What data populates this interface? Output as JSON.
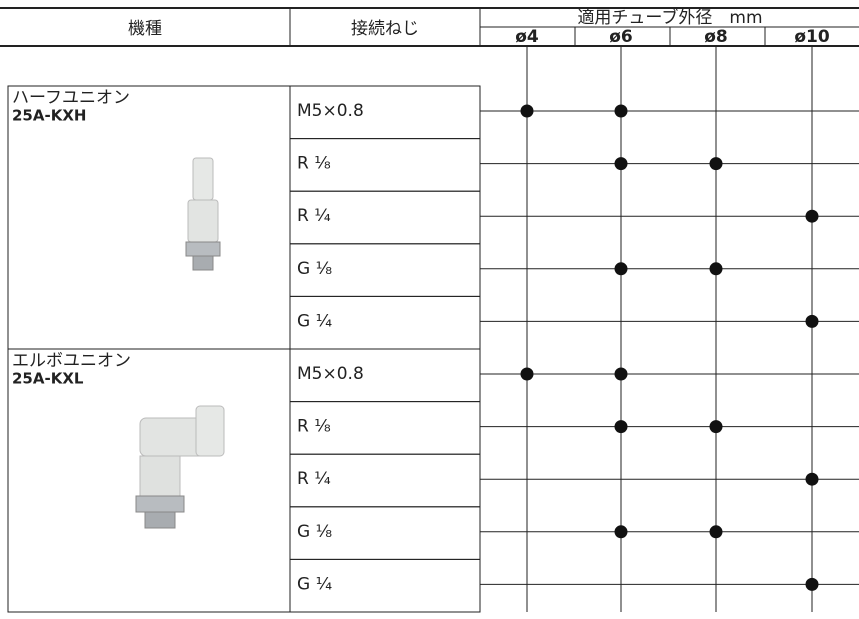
{
  "header": {
    "model": "機種",
    "thread": "接続ねじ",
    "tube": "適用チューブ外径　mm",
    "sizes": [
      "ø4",
      "ø6",
      "ø8",
      "ø10"
    ]
  },
  "models": [
    {
      "name": "ハーフユニオン",
      "code": "25A-KXH",
      "rows": [
        {
          "thread": "M5×0.8",
          "available": [
            true,
            true,
            false,
            false
          ]
        },
        {
          "thread": "R ¹⁄₈",
          "available": [
            false,
            true,
            true,
            false
          ]
        },
        {
          "thread": "R ¹⁄₄",
          "available": [
            false,
            false,
            false,
            true
          ]
        },
        {
          "thread": "G ¹⁄₈",
          "available": [
            false,
            true,
            true,
            false
          ]
        },
        {
          "thread": "G ¹⁄₄",
          "available": [
            false,
            false,
            false,
            true
          ]
        }
      ]
    },
    {
      "name": "エルボユニオン",
      "code": "25A-KXL",
      "rows": [
        {
          "thread": "M5×0.8",
          "available": [
            true,
            true,
            false,
            false
          ]
        },
        {
          "thread": "R ¹⁄₈",
          "available": [
            false,
            true,
            true,
            false
          ]
        },
        {
          "thread": "R ¹⁄₄",
          "available": [
            false,
            false,
            false,
            true
          ]
        },
        {
          "thread": "G ¹⁄₈",
          "available": [
            false,
            true,
            true,
            false
          ]
        },
        {
          "thread": "G ¹⁄₄",
          "available": [
            false,
            false,
            false,
            true
          ]
        }
      ]
    }
  ]
}
